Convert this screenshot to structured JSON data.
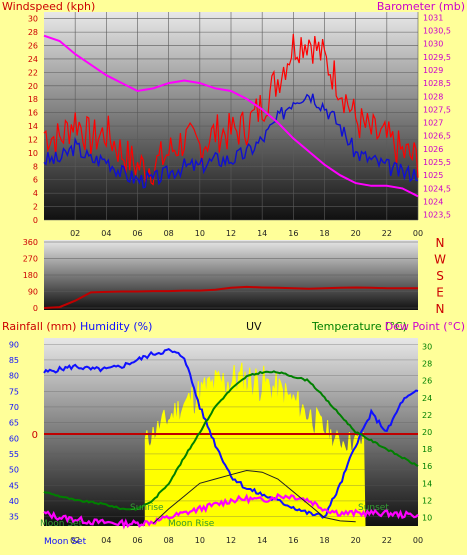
{
  "colors": {
    "background": "#ffff99",
    "wind": "#ff0000",
    "gust_avg": "#1010d0",
    "barometer": "#ff00ff",
    "direction": "#c00000",
    "humidity": "#1010ff",
    "temperature": "#008000",
    "dew_point": "#ff00ff",
    "uv": "#ffff00",
    "rainfall": "#c00000",
    "label_red": "#cc0000",
    "label_magenta": "#cc00cc",
    "label_green": "#008000",
    "tick_gray": "#222222"
  },
  "chart_data": [
    {
      "type": "line",
      "title": "",
      "ylabel_left": "Windspeed (kph)",
      "ylabel_right": "Barometer (mb)",
      "x_ticks": [
        "02",
        "04",
        "06",
        "08",
        "10",
        "12",
        "14",
        "16",
        "18",
        "20",
        "22",
        "00"
      ],
      "ylim_left": [
        0,
        31
      ],
      "y_ticks_left": [
        "0",
        "2",
        "4",
        "6",
        "8",
        "10",
        "12",
        "14",
        "16",
        "18",
        "20",
        "22",
        "24",
        "26",
        "28",
        "30"
      ],
      "ylim_right": [
        1023.3,
        1031.2
      ],
      "y_ticks_right": [
        "1023,5",
        "1024",
        "1024,5",
        "1025",
        "1025,5",
        "1026",
        "1026,5",
        "1027",
        "1027,5",
        "1028",
        "1028,5",
        "1029",
        "1029,5",
        "1030",
        "1030,5",
        "1031"
      ],
      "hours": [
        0,
        1,
        2,
        3,
        4,
        5,
        6,
        7,
        8,
        9,
        10,
        11,
        12,
        13,
        14,
        15,
        16,
        17,
        18,
        19,
        20,
        21,
        22,
        23,
        24
      ],
      "series": [
        {
          "axis": "left",
          "values": [
            13,
            12,
            15,
            12,
            13,
            10,
            8,
            8,
            10,
            12,
            11,
            13,
            13,
            14,
            17,
            21,
            26,
            27,
            24,
            20,
            15,
            13,
            12,
            10,
            9
          ]
        },
        {
          "axis": "left",
          "values": [
            9,
            9,
            11,
            9,
            9,
            7,
            6,
            6,
            7,
            8,
            8,
            9,
            9,
            10,
            12,
            15,
            18,
            19,
            17,
            14,
            10,
            9,
            8,
            7,
            7
          ]
        },
        {
          "axis": "right",
          "values": [
            1030.3,
            1030.1,
            1029.6,
            1029.2,
            1028.8,
            1028.5,
            1028.2,
            1028.3,
            1028.5,
            1028.6,
            1028.5,
            1028.3,
            1028.2,
            1027.9,
            1027.5,
            1027.0,
            1026.4,
            1025.9,
            1025.4,
            1025.0,
            1024.7,
            1024.6,
            1024.6,
            1024.5,
            1024.2
          ]
        }
      ]
    },
    {
      "type": "line",
      "title": "",
      "ylim": [
        0,
        360
      ],
      "y_ticks": [
        "0",
        "90",
        "180",
        "270",
        "360"
      ],
      "direction_labels": [
        "N",
        "W",
        "S",
        "E",
        "N"
      ],
      "hours": [
        0,
        1,
        2,
        3,
        4,
        5,
        6,
        7,
        8,
        9,
        10,
        11,
        12,
        13,
        14,
        15,
        16,
        17,
        18,
        19,
        20,
        21,
        22,
        23,
        24
      ],
      "series": [
        {
          "values": [
            0,
            5,
            40,
            85,
            88,
            90,
            90,
            92,
            92,
            95,
            95,
            100,
            110,
            115,
            112,
            110,
            108,
            105,
            108,
            110,
            112,
            110,
            108,
            108,
            108
          ]
        }
      ]
    },
    {
      "type": "line",
      "title": "",
      "labels_top": [
        "Rainfall (mm)",
        "Humidity (%)",
        "UV",
        "Temperature (°C)",
        "Dew Point (°C)"
      ],
      "ylim_left": [
        32,
        92
      ],
      "y_ticks_left": [
        "35",
        "40",
        "45",
        "50",
        "55",
        "60",
        "65",
        "70",
        "75",
        "80",
        "85",
        "90"
      ],
      "ylim_right": [
        9,
        31
      ],
      "y_ticks_right": [
        "10",
        "12",
        "14",
        "16",
        "18",
        "20",
        "22",
        "24",
        "26",
        "28",
        "30"
      ],
      "rain_zero_label": "0",
      "hours": [
        0,
        1,
        2,
        3,
        4,
        5,
        6,
        7,
        8,
        9,
        10,
        11,
        12,
        13,
        14,
        15,
        16,
        17,
        18,
        19,
        20,
        21,
        22,
        23,
        24
      ],
      "series": [
        {
          "axis": "left",
          "values": [
            81,
            82,
            83,
            82,
            82,
            83,
            85,
            87,
            88,
            86,
            70,
            58,
            48,
            44,
            42,
            40,
            38,
            36,
            35,
            45,
            58,
            68,
            62,
            72,
            75
          ]
        },
        {
          "axis": "right",
          "values": [
            13,
            12.5,
            12,
            11.8,
            11.5,
            11,
            11,
            12,
            14,
            17,
            20,
            23,
            25,
            26.5,
            27,
            27,
            26.5,
            26,
            24,
            22,
            20,
            19,
            18,
            17,
            16
          ]
        },
        {
          "axis": "right",
          "values": [
            10.5,
            10,
            9.8,
            9.5,
            9.4,
            9.3,
            9.3,
            9.5,
            10,
            10.5,
            11,
            11.5,
            12,
            12.2,
            12,
            12.5,
            12.5,
            12,
            11,
            10.5,
            10.5,
            10.5,
            10.5,
            10.3,
            10.3
          ]
        },
        {
          "axis": "right",
          "values": [
            null,
            null,
            null,
            null,
            null,
            null,
            null,
            9.3,
            11,
            12.5,
            14,
            14.5,
            15,
            15.5,
            15.3,
            14.5,
            13,
            11.5,
            10,
            9.6,
            9.5,
            null,
            null,
            null,
            null
          ]
        }
      ],
      "uv_area_hours": [
        6.5,
        20.6
      ],
      "event_labels": [
        "Moon Set",
        "Moon Set",
        "Sunrise",
        "Moon Rise",
        "Sunset"
      ]
    }
  ]
}
